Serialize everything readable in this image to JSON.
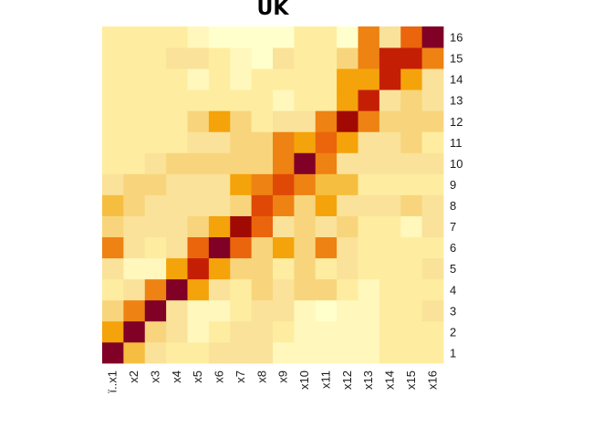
{
  "chart_data": {
    "type": "heatmap",
    "title": "UK",
    "x_labels": [
      "ï..x1",
      "x2",
      "x3",
      "x4",
      "x5",
      "x6",
      "x7",
      "x8",
      "x9",
      "x10",
      "x11",
      "x12",
      "x13",
      "x14",
      "x15",
      "x16"
    ],
    "y_labels": [
      "1",
      "2",
      "3",
      "4",
      "5",
      "6",
      "7",
      "8",
      "9",
      "10",
      "11",
      "12",
      "13",
      "14",
      "15",
      "16"
    ],
    "color_scale": [
      "#FFFFCC",
      "#FFF7BC",
      "#FEEDA0",
      "#FAE29A",
      "#F8D57C",
      "#F6BE40",
      "#F5A30A",
      "#EE8212",
      "#EB650C",
      "#E04806",
      "#C41F05",
      "#A00A03",
      "#800026"
    ],
    "grid": false,
    "legend": "none",
    "rows": [
      [
        12,
        5,
        3,
        2,
        2,
        3,
        3,
        3,
        1,
        1,
        1,
        1,
        1,
        2,
        2,
        2
      ],
      [
        6,
        12,
        4,
        3,
        1,
        2,
        3,
        3,
        2,
        1,
        1,
        1,
        1,
        2,
        2,
        2
      ],
      [
        4,
        7,
        12,
        3,
        1,
        1,
        2,
        3,
        3,
        1,
        0,
        1,
        1,
        2,
        2,
        3
      ],
      [
        2,
        3,
        7,
        12,
        6,
        3,
        2,
        4,
        3,
        4,
        4,
        2,
        1,
        2,
        2,
        2
      ],
      [
        3,
        1,
        1,
        6,
        10,
        6,
        4,
        4,
        2,
        4,
        2,
        3,
        2,
        2,
        2,
        3
      ],
      [
        7,
        3,
        2,
        3,
        8,
        12,
        8,
        4,
        6,
        4,
        7,
        3,
        2,
        2,
        2,
        2
      ],
      [
        4,
        3,
        3,
        3,
        4,
        6,
        11,
        8,
        3,
        4,
        3,
        4,
        2,
        2,
        1,
        3
      ],
      [
        5,
        4,
        3,
        3,
        3,
        3,
        4,
        9,
        7,
        4,
        6,
        3,
        3,
        3,
        4,
        3
      ],
      [
        3,
        4,
        4,
        3,
        3,
        3,
        6,
        7,
        9,
        7,
        5,
        5,
        2,
        2,
        2,
        2
      ],
      [
        2,
        2,
        3,
        4,
        4,
        4,
        4,
        4,
        7,
        12,
        7,
        3,
        3,
        3,
        3,
        3
      ],
      [
        2,
        2,
        2,
        2,
        3,
        3,
        4,
        4,
        7,
        6,
        8,
        6,
        3,
        3,
        4,
        2
      ],
      [
        2,
        2,
        2,
        2,
        4,
        6,
        4,
        2,
        3,
        3,
        7,
        11,
        7,
        4,
        4,
        4
      ],
      [
        2,
        2,
        2,
        2,
        2,
        2,
        2,
        2,
        1,
        2,
        2,
        6,
        10,
        3,
        4,
        3
      ],
      [
        2,
        2,
        2,
        2,
        1,
        2,
        1,
        2,
        2,
        2,
        2,
        6,
        6,
        10,
        6,
        3
      ],
      [
        2,
        2,
        2,
        3,
        3,
        2,
        1,
        0,
        3,
        2,
        2,
        4,
        7,
        10,
        10,
        7
      ],
      [
        2,
        2,
        2,
        2,
        1,
        0,
        0,
        0,
        0,
        2,
        2,
        0,
        7,
        3,
        8,
        12
      ]
    ]
  }
}
